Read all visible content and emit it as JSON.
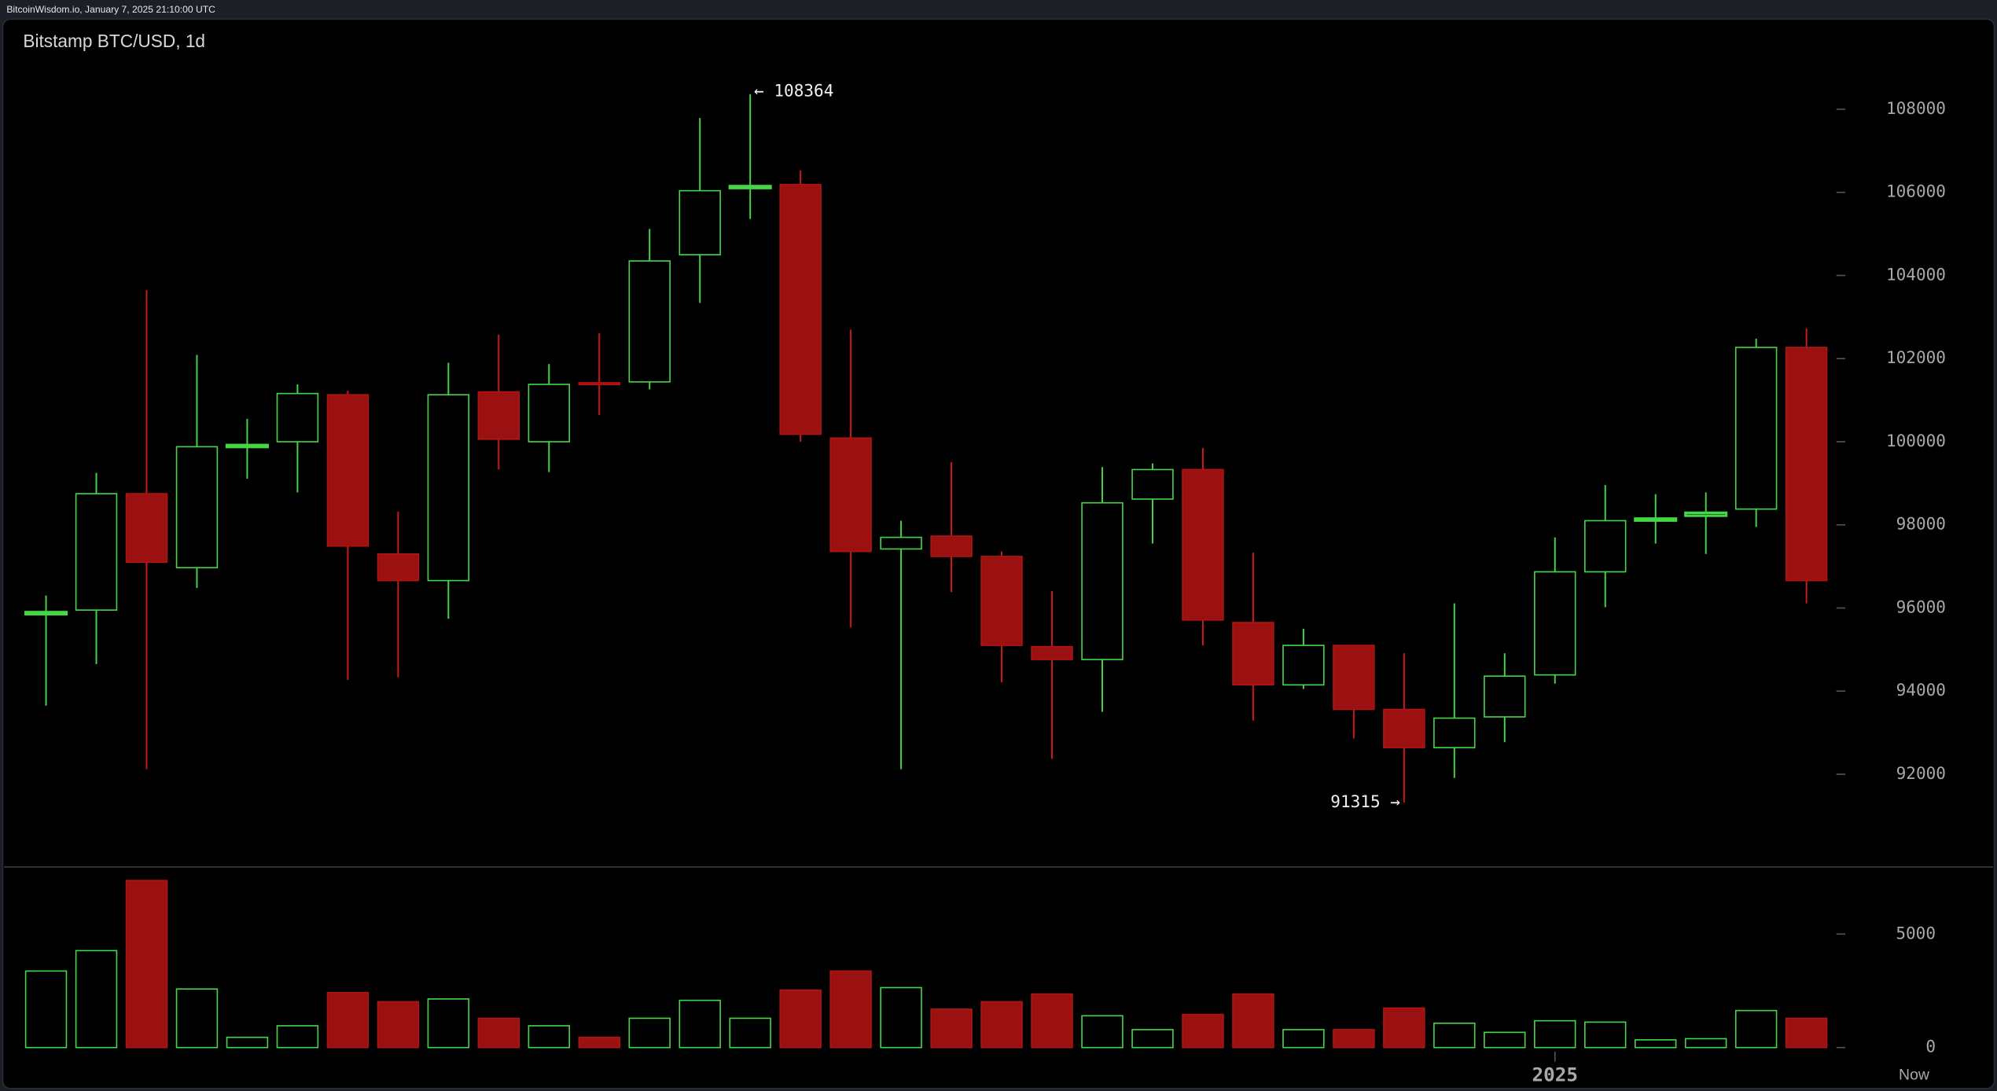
{
  "header": "BitcoinWisdom.io, January 7, 2025 21:10:00 UTC",
  "chart_data": [
    {
      "type": "candlestick",
      "title": "Bitstamp BTC/USD, 1d",
      "now_label": "Now",
      "categories": [
        null,
        null,
        null,
        null,
        null,
        null,
        null,
        null,
        null,
        null,
        null,
        null,
        null,
        null,
        null,
        null,
        null,
        null,
        null,
        null,
        null,
        null,
        null,
        null,
        null,
        null,
        null,
        null,
        null,
        null,
        "2025",
        null,
        null,
        null,
        null,
        null
      ],
      "open": [
        95850,
        95950,
        98750,
        96970,
        99880,
        100000,
        101130,
        97300,
        96660,
        101200,
        100000,
        101420,
        101440,
        104500,
        106110,
        106190,
        100090,
        97420,
        97730,
        97240,
        95070,
        94760,
        98620,
        99330,
        95650,
        94150,
        95100,
        93560,
        92640,
        93380,
        94390,
        96870,
        98110,
        98220,
        98380,
        102270
      ],
      "high": [
        96300,
        99250,
        103650,
        102090,
        100550,
        101380,
        101230,
        98320,
        101900,
        102580,
        101870,
        102610,
        105120,
        107790,
        108364,
        106530,
        102700,
        98100,
        99510,
        97360,
        96410,
        99390,
        99480,
        99850,
        97330,
        95500,
        95100,
        94910,
        96110,
        94910,
        97700,
        98960,
        98740,
        98780,
        102480,
        102730
      ],
      "low": [
        93650,
        94650,
        92120,
        96480,
        99110,
        98780,
        94270,
        94330,
        95740,
        99330,
        99270,
        100640,
        101260,
        103340,
        105360,
        100000,
        95530,
        92120,
        96380,
        94210,
        92370,
        93500,
        97550,
        95100,
        93290,
        94050,
        92860,
        91315,
        91910,
        92770,
        94180,
        96020,
        97550,
        97300,
        97950,
        96110
      ],
      "close": [
        95900,
        98750,
        97100,
        99880,
        99920,
        101160,
        97490,
        96660,
        101130,
        100060,
        101380,
        101400,
        104350,
        106040,
        106150,
        100180,
        97360,
        97700,
        97240,
        95100,
        94760,
        98530,
        99330,
        95710,
        94150,
        95100,
        93560,
        92640,
        93350,
        94360,
        96870,
        98100,
        98150,
        98290,
        102270,
        96660
      ],
      "up_color": "#45d645",
      "down_color": "#9b1010",
      "ylim": [
        89800,
        109250
      ],
      "yticks": [
        92000,
        94000,
        96000,
        98000,
        100000,
        102000,
        104000,
        106000,
        108000
      ],
      "annotations": [
        {
          "text": "← 108364",
          "value": 108364
        },
        {
          "text": "91315 →",
          "value": 91315
        }
      ]
    },
    {
      "type": "bar",
      "values": [
        3370,
        4270,
        7360,
        2580,
        450,
        960,
        2420,
        2020,
        2140,
        1290,
        960,
        450,
        1290,
        2080,
        1290,
        2530,
        3370,
        2640,
        1690,
        2020,
        2360,
        1400,
        790,
        1460,
        2360,
        790,
        790,
        1740,
        1070,
        670,
        1180,
        1120,
        340,
        390,
        1630,
        1290
      ],
      "ylim": [
        -400,
        7900
      ],
      "yticks": [
        0,
        5000
      ]
    }
  ]
}
